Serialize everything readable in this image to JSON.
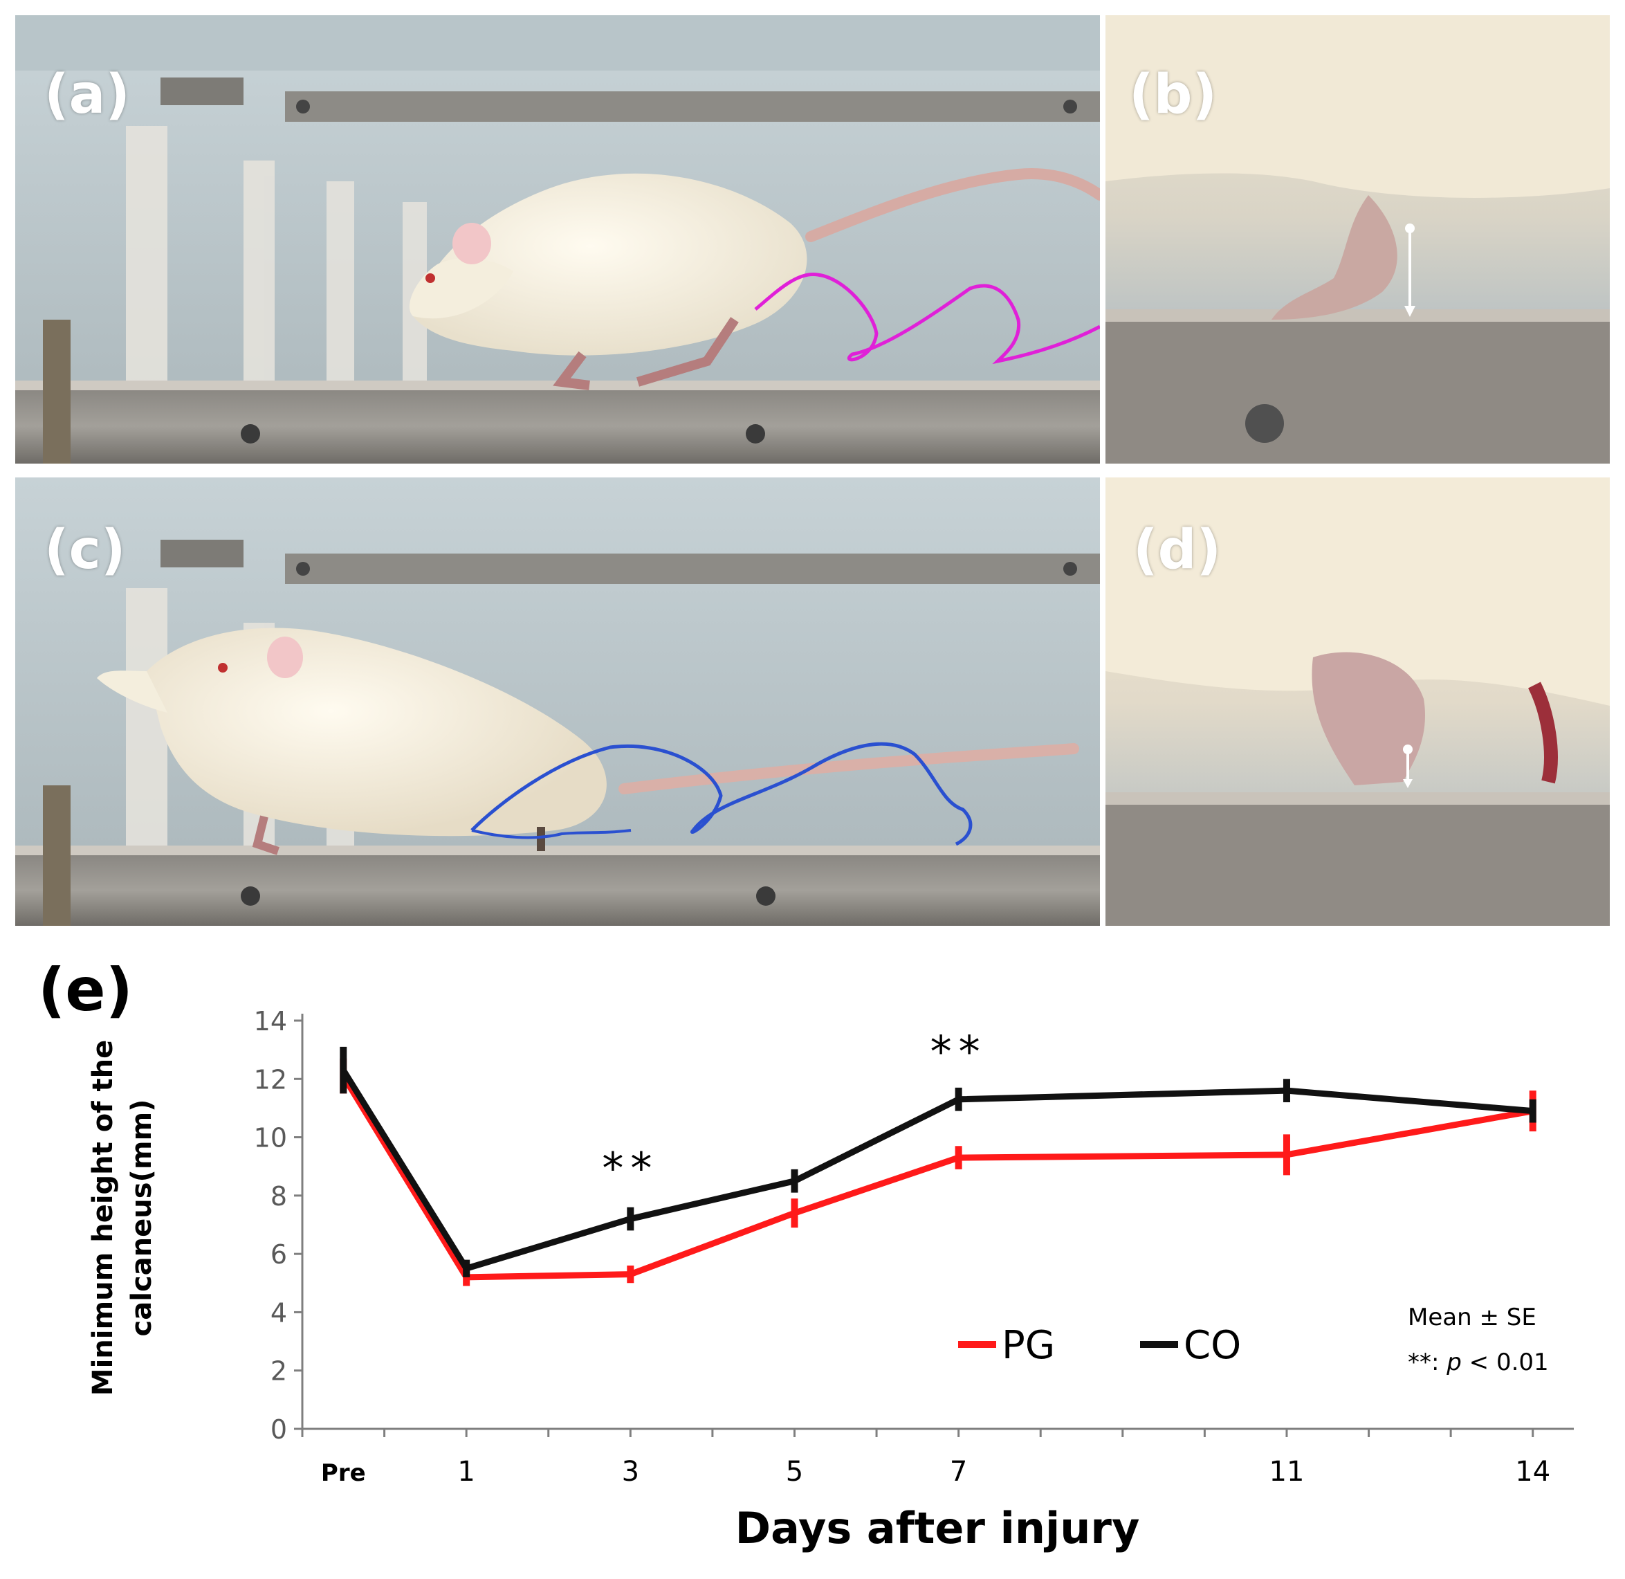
{
  "panels": {
    "a": {
      "label": "(a)"
    },
    "b": {
      "label": "(b)"
    },
    "c": {
      "label": "(c)"
    },
    "d": {
      "label": "(d)"
    }
  },
  "colors": {
    "pg": "#ff1a1a",
    "co": "#111111",
    "trace_a": "#e020d8",
    "trace_c": "#2a50d0"
  },
  "chart_data": {
    "type": "line",
    "panel_label": "(e)",
    "xlabel": "Days after injury",
    "ylabel_line1": "Minimum height of the",
    "ylabel_line2": "calcaneus(mm)",
    "ylim": [
      0,
      14
    ],
    "yticks": [
      0,
      2,
      4,
      6,
      8,
      10,
      12,
      14
    ],
    "categories": [
      "Pre",
      "1",
      "3",
      "5",
      "7",
      "11",
      "14"
    ],
    "x_positions": [
      -0.5,
      1,
      3,
      5,
      7,
      11,
      14
    ],
    "xlim": [
      -1,
      14.5
    ],
    "series": [
      {
        "name": "PG",
        "values": [
          12.1,
          5.2,
          5.3,
          7.4,
          9.3,
          9.4,
          10.9
        ],
        "errors": [
          0.6,
          0.3,
          0.3,
          0.5,
          0.4,
          0.7,
          0.7
        ]
      },
      {
        "name": "CO",
        "values": [
          12.3,
          5.5,
          7.2,
          8.5,
          11.3,
          11.6,
          10.9
        ],
        "errors": [
          0.8,
          0.3,
          0.4,
          0.4,
          0.4,
          0.4,
          0.4
        ]
      }
    ],
    "significance": [
      {
        "x": 3,
        "y": 8.9,
        "text": "**"
      },
      {
        "x": 7,
        "y": 12.9,
        "text": "**"
      }
    ],
    "legend": {
      "pg": "PG",
      "co": "CO"
    },
    "note_line1": "Mean ± SE",
    "note_line2_prefix": "**: ",
    "note_line2_p": "p",
    "note_line2_suffix": " < 0.01"
  }
}
